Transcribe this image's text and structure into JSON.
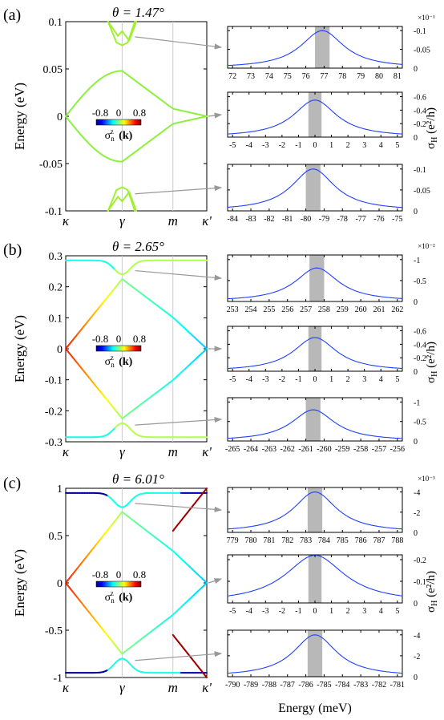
{
  "figure": {
    "shared_xlabel": "Energy (meV)",
    "colorbar": {
      "min_label": "-0.8",
      "mid_label": "0",
      "max_label": "0.8",
      "label": "σ",
      "label_sub": "n",
      "label_sup": "z",
      "label_k": "(k)"
    },
    "band_ylabel": "Energy (eV)",
    "hall_ylabel": "σ",
    "hall_ylabel_sub": "H",
    "hall_ylabel_unit": "(e²/h)",
    "band_xticks": [
      "κ",
      "γ",
      "m",
      "κ'"
    ]
  },
  "chart_data": [
    {
      "type": "line",
      "panel": "(a)",
      "title": "θ = 1.47°",
      "plot": "band structure",
      "ylabel": "Energy (eV)",
      "ylim": [
        -0.1,
        0.1
      ],
      "yticks": [
        "0.1",
        "0.05",
        "0",
        "-0.05",
        "-0.1"
      ],
      "xticks": [
        "κ",
        "γ",
        "m",
        "κ'"
      ],
      "colorbar": [
        -0.8,
        0.8
      ],
      "bands_note": "bands colored by σ_n^z(k); flat bands near ±0.1 eV and Dirac-like bands crossing 0",
      "series": [
        {
          "values": [
            0.0,
            0.02,
            0.035,
            0.045,
            0.048,
            0.04,
            0.025,
            0.012,
            0.005,
            0.0
          ]
        },
        {
          "values": [
            0.0,
            -0.02,
            -0.035,
            -0.045,
            -0.048,
            -0.04,
            -0.025,
            -0.012,
            -0.005,
            0.0
          ]
        }
      ]
    },
    {
      "type": "line",
      "panel": "(a)",
      "plot": "Hall conductivity",
      "x": [
        72,
        73,
        74,
        75,
        76,
        77,
        78,
        79,
        80,
        81
      ],
      "xticks": [
        "72",
        "73",
        "74",
        "75",
        "76",
        "77",
        "78",
        "79",
        "80",
        "81"
      ],
      "yticks": [
        "-0.1",
        "-0.05",
        "0"
      ],
      "exponent": "×10⁻¹",
      "peak_x": 76.9,
      "peak_y": -0.1,
      "shaded_x": [
        76.5,
        77.3
      ]
    },
    {
      "type": "line",
      "panel": "(a)",
      "plot": "Hall conductivity",
      "x": [
        -5,
        -4,
        -3,
        -2,
        -1,
        0,
        1,
        2,
        3,
        4,
        5
      ],
      "xticks": [
        "-5",
        "-4",
        "-3",
        "-2",
        "-1",
        "0",
        "1",
        "2",
        "3",
        "4",
        "5"
      ],
      "yticks": [
        "-0.6",
        "-0.4",
        "-0.2",
        "0"
      ],
      "peak_x": 0,
      "peak_y": -0.55,
      "shaded_x": [
        -0.4,
        0.4
      ]
    },
    {
      "type": "line",
      "panel": "(a)",
      "plot": "Hall conductivity",
      "x": [
        -84,
        -83,
        -82,
        -81,
        -80,
        -79,
        -78,
        -77,
        -76,
        -75
      ],
      "xticks": [
        "-84",
        "-83",
        "-82",
        "-81",
        "-80",
        "-79",
        "-78",
        "-77",
        "-76",
        "-75"
      ],
      "yticks": [
        "-0.1",
        "-0.05",
        "0"
      ],
      "peak_x": -79.6,
      "peak_y": -0.1,
      "shaded_x": [
        -80.0,
        -79.2
      ]
    },
    {
      "type": "line",
      "panel": "(b)",
      "title": "θ = 2.65°",
      "plot": "band structure",
      "ylabel": "Energy (eV)",
      "ylim": [
        -0.3,
        0.3
      ],
      "yticks": [
        "0.3",
        "0.2",
        "0.1",
        "0",
        "-0.1",
        "-0.2",
        "-0.3"
      ],
      "xticks": [
        "κ",
        "γ",
        "m",
        "κ'"
      ],
      "colorbar": [
        -0.8,
        0.8
      ]
    },
    {
      "type": "line",
      "panel": "(b)",
      "plot": "Hall conductivity",
      "x": [
        253,
        254,
        255,
        256,
        257,
        258,
        259,
        260,
        261,
        262
      ],
      "xticks": [
        "253",
        "254",
        "255",
        "256",
        "257",
        "258",
        "259",
        "260",
        "261",
        "262"
      ],
      "yticks": [
        "-1",
        "-0.5",
        "0"
      ],
      "exponent": "×10⁻²",
      "peak_x": 257.6,
      "peak_y": -0.8,
      "shaded_x": [
        257.2,
        258.0
      ]
    },
    {
      "type": "line",
      "panel": "(b)",
      "plot": "Hall conductivity",
      "x": [
        -5,
        -4,
        -3,
        -2,
        -1,
        0,
        1,
        2,
        3,
        4,
        5
      ],
      "xticks": [
        "-5",
        "-4",
        "-3",
        "-2",
        "-1",
        "0",
        "1",
        "2",
        "3",
        "4",
        "5"
      ],
      "yticks": [
        "-0.6",
        "-0.4",
        "-0.2",
        "0"
      ],
      "peak_x": 0,
      "peak_y": -0.5,
      "shaded_x": [
        -0.4,
        0.4
      ]
    },
    {
      "type": "line",
      "panel": "(b)",
      "plot": "Hall conductivity",
      "x": [
        -265,
        -264,
        -263,
        -262,
        -261,
        -260,
        -259,
        -258,
        -257,
        -256
      ],
      "xticks": [
        "-265",
        "-264",
        "-263",
        "-262",
        "-261",
        "-260",
        "-259",
        "-258",
        "-257",
        "-256"
      ],
      "yticks": [
        "-1",
        "-0.5",
        "0"
      ],
      "peak_x": -260.6,
      "peak_y": -0.8,
      "shaded_x": [
        -261.0,
        -260.2
      ]
    },
    {
      "type": "line",
      "panel": "(c)",
      "title": "θ = 6.01°",
      "plot": "band structure",
      "ylabel": "Energy (eV)",
      "ylim": [
        -1,
        1
      ],
      "yticks": [
        "1",
        "0.5",
        "0",
        "-0.5",
        "-1"
      ],
      "xticks": [
        "κ",
        "γ",
        "m",
        "κ'"
      ],
      "colorbar": [
        -0.8,
        0.8
      ]
    },
    {
      "type": "line",
      "panel": "(c)",
      "plot": "Hall conductivity",
      "x": [
        779,
        780,
        781,
        782,
        783,
        784,
        785,
        786,
        787,
        788
      ],
      "xticks": [
        "779",
        "780",
        "781",
        "782",
        "783",
        "784",
        "785",
        "786",
        "787",
        "788"
      ],
      "yticks": [
        "-4",
        "-2",
        "0"
      ],
      "exponent": "×10⁻³",
      "peak_x": 783.5,
      "peak_y": -4,
      "shaded_x": [
        783.1,
        783.9
      ]
    },
    {
      "type": "line",
      "panel": "(c)",
      "plot": "Hall conductivity",
      "x": [
        -5,
        -4,
        -3,
        -2,
        -1,
        0,
        1,
        2,
        3,
        4,
        5
      ],
      "xticks": [
        "-5",
        "-4",
        "-3",
        "-2",
        "-1",
        "0",
        "1",
        "2",
        "3",
        "4",
        "5"
      ],
      "yticks": [
        "-0.2",
        "-0.1",
        "0"
      ],
      "peak_x": 0,
      "peak_y": -0.22,
      "shaded_x": [
        -0.4,
        0.4
      ]
    },
    {
      "type": "line",
      "panel": "(c)",
      "plot": "Hall conductivity",
      "x": [
        -790,
        -789,
        -788,
        -787,
        -786,
        -785,
        -784,
        -783,
        -782,
        -781
      ],
      "xticks": [
        "-790",
        "-789",
        "-788",
        "-787",
        "-786",
        "-785",
        "-784",
        "-783",
        "-782",
        "-781"
      ],
      "yticks": [
        "-4",
        "-2",
        "0"
      ],
      "peak_x": -785.5,
      "peak_y": -4,
      "shaded_x": [
        -785.9,
        -785.1
      ]
    }
  ]
}
